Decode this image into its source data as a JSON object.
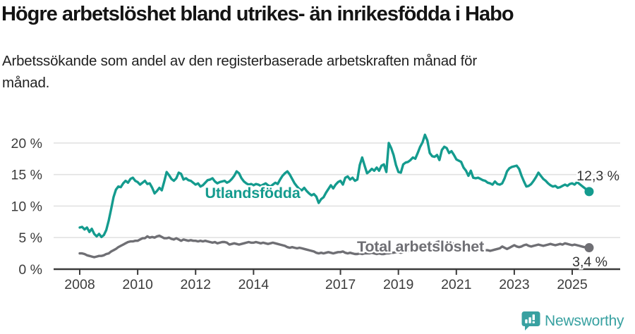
{
  "header": {
    "title": "Högre arbetslöshet bland utrikes- än inrikesfödda i Habo",
    "subtitle_line1": "Arbetssökande som andel av den registerbaserade arbetskraften månad för",
    "subtitle_line2": "månad."
  },
  "footer": {
    "brand": "Newsworthy"
  },
  "colors": {
    "series_foreign": "#149b8e",
    "series_total": "#6f6f74",
    "logo_teal": "#38a1a1",
    "axis_text": "#3c3c3c",
    "axis_line": "#3a3a3a",
    "gridline": "#e2e2e2",
    "value_label": "#333333"
  },
  "chart_data": {
    "type": "line",
    "title": "Högre arbetslöshet bland utrikes- än inrikesfödda i Habo",
    "subtitle": "Arbetssökande som andel av den registerbaserade arbetskraften månad för månad.",
    "unit": "%",
    "x_start_year": 2008.0,
    "x_step_months": 1,
    "xlim": [
      2007.1,
      2026.6
    ],
    "ylim": [
      0,
      20
    ],
    "grid": true,
    "legend_position": "inline-labels",
    "x_tick_years": [
      2008,
      2010,
      2012,
      2014,
      2017,
      2019,
      2021,
      2023,
      2025
    ],
    "y_ticks": [
      0,
      5,
      10,
      15,
      20
    ],
    "y_tick_labels": [
      "0 %",
      "5 %",
      "10 %",
      "15 %",
      "20 %"
    ],
    "series": [
      {
        "name": "Utlandsfödda",
        "color": "#149b8e",
        "end_value": 12.3,
        "end_label": "12,3 %",
        "values": [
          6.6,
          6.7,
          6.3,
          6.6,
          5.9,
          6.4,
          5.6,
          5.2,
          5.6,
          5.1,
          5.4,
          6.2,
          7.7,
          9.5,
          11.4,
          12.6,
          13.1,
          13.0,
          13.6,
          14.0,
          13.7,
          14.3,
          14.5,
          14.0,
          13.8,
          13.4,
          13.7,
          14.0,
          13.5,
          13.6,
          12.9,
          12.0,
          12.4,
          12.9,
          12.5,
          13.9,
          15.4,
          14.9,
          14.3,
          14.0,
          14.4,
          15.3,
          15.1,
          14.2,
          14.4,
          14.1,
          14.0,
          13.7,
          13.4,
          13.6,
          13.1,
          13.3,
          13.7,
          14.1,
          14.2,
          14.4,
          13.9,
          13.6,
          13.8,
          13.9,
          14.0,
          13.7,
          13.9,
          14.3,
          14.8,
          15.5,
          15.2,
          14.4,
          13.9,
          13.6,
          13.4,
          13.5,
          13.3,
          13.5,
          13.4,
          13.2,
          13.4,
          13.6,
          13.3,
          13.1,
          13.4,
          13.7,
          13.5,
          14.2,
          14.8,
          15.2,
          15.5,
          15.0,
          14.3,
          13.6,
          13.1,
          12.7,
          12.5,
          12.9,
          12.4,
          12.0,
          11.7,
          11.9,
          11.5,
          10.5,
          11.1,
          11.4,
          12.1,
          12.7,
          13.3,
          12.8,
          13.4,
          13.8,
          14.0,
          13.4,
          14.5,
          14.7,
          14.2,
          14.5,
          14.0,
          14.2,
          16.5,
          17.7,
          16.4,
          15.2,
          15.5,
          15.9,
          15.6,
          16.1,
          15.6,
          16.4,
          16.6,
          15.4,
          20.0,
          19.2,
          18.1,
          16.5,
          15.4,
          15.3,
          16.6,
          16.9,
          17.0,
          17.3,
          17.7,
          17.5,
          18.4,
          19.4,
          20.1,
          21.3,
          20.4,
          18.4,
          17.9,
          17.8,
          18.1,
          17.3,
          18.9,
          19.4,
          19.2,
          18.4,
          18.7,
          18.1,
          17.4,
          17.2,
          17.0,
          16.1,
          15.6,
          14.8,
          15.6,
          14.5,
          14.4,
          14.5,
          14.3,
          14.1,
          14.0,
          13.7,
          13.6,
          13.4,
          13.9,
          13.5,
          13.4,
          13.6,
          14.4,
          15.5,
          16.0,
          16.2,
          16.3,
          16.4,
          15.9,
          14.8,
          13.9,
          13.1,
          13.2,
          13.5,
          14.0,
          14.6,
          15.3,
          14.8,
          14.3,
          14.0,
          13.6,
          13.3,
          13.1,
          13.2,
          12.9,
          13.0,
          13.2,
          13.4,
          13.2,
          13.5,
          13.6,
          13.4,
          13.8,
          13.5,
          13.2,
          12.9,
          12.6,
          12.3
        ]
      },
      {
        "name": "Total arbetslöshet",
        "color": "#6f6f74",
        "end_value": 3.4,
        "end_label": "3,4 %",
        "values": [
          2.5,
          2.5,
          2.4,
          2.2,
          2.1,
          2.0,
          1.9,
          2.0,
          2.1,
          2.1,
          2.2,
          2.4,
          2.5,
          2.8,
          3.0,
          3.2,
          3.5,
          3.7,
          3.9,
          4.1,
          4.3,
          4.4,
          4.4,
          4.5,
          4.5,
          4.7,
          4.9,
          4.9,
          5.2,
          5.0,
          5.1,
          5.0,
          5.2,
          5.3,
          5.1,
          4.9,
          4.9,
          5.0,
          4.8,
          4.7,
          4.9,
          4.7,
          4.5,
          4.7,
          4.6,
          4.5,
          4.6,
          4.5,
          4.5,
          4.4,
          4.5,
          4.4,
          4.5,
          4.4,
          4.3,
          4.2,
          4.3,
          4.1,
          4.2,
          4.3,
          4.3,
          4.2,
          3.9,
          4.0,
          4.1,
          4.0,
          3.9,
          4.0,
          4.1,
          4.2,
          4.3,
          4.2,
          4.2,
          4.3,
          4.2,
          4.1,
          4.2,
          4.1,
          4.0,
          4.1,
          4.2,
          4.1,
          4.0,
          3.9,
          3.8,
          3.7,
          3.5,
          3.4,
          3.5,
          3.4,
          3.3,
          3.4,
          3.3,
          3.2,
          3.1,
          3.0,
          2.9,
          2.8,
          2.6,
          2.5,
          2.6,
          2.5,
          2.6,
          2.7,
          2.6,
          2.5,
          2.6,
          2.7,
          2.7,
          2.8,
          2.6,
          2.5,
          2.6,
          2.5,
          2.4,
          2.4,
          2.5,
          2.4,
          2.5,
          2.5,
          2.5,
          2.6,
          2.5,
          2.4,
          2.5,
          2.4,
          2.4,
          2.5,
          2.5,
          2.6,
          2.6,
          2.7,
          2.7,
          2.6,
          2.7,
          2.8,
          2.8,
          2.9,
          2.9,
          3.0,
          3.0,
          3.1,
          3.1,
          3.2,
          3.3,
          3.4,
          3.7,
          4.1,
          4.3,
          4.4,
          4.5,
          4.4,
          4.3,
          4.2,
          4.1,
          4.0,
          4.0,
          3.9,
          3.8,
          3.7,
          3.6,
          3.5,
          3.4,
          3.3,
          3.3,
          3.2,
          3.1,
          3.1,
          3.0,
          3.0,
          2.9,
          3.0,
          3.1,
          3.2,
          3.3,
          3.6,
          3.4,
          3.2,
          3.4,
          3.6,
          3.8,
          3.6,
          3.5,
          3.6,
          3.8,
          3.9,
          3.7,
          3.6,
          3.7,
          3.8,
          3.9,
          3.8,
          3.7,
          3.8,
          3.9,
          4.0,
          3.9,
          3.8,
          3.9,
          4.0,
          3.9,
          4.1,
          4.0,
          3.9,
          3.8,
          3.9,
          3.8,
          3.7,
          3.6,
          3.5,
          3.5,
          3.4
        ]
      }
    ]
  }
}
